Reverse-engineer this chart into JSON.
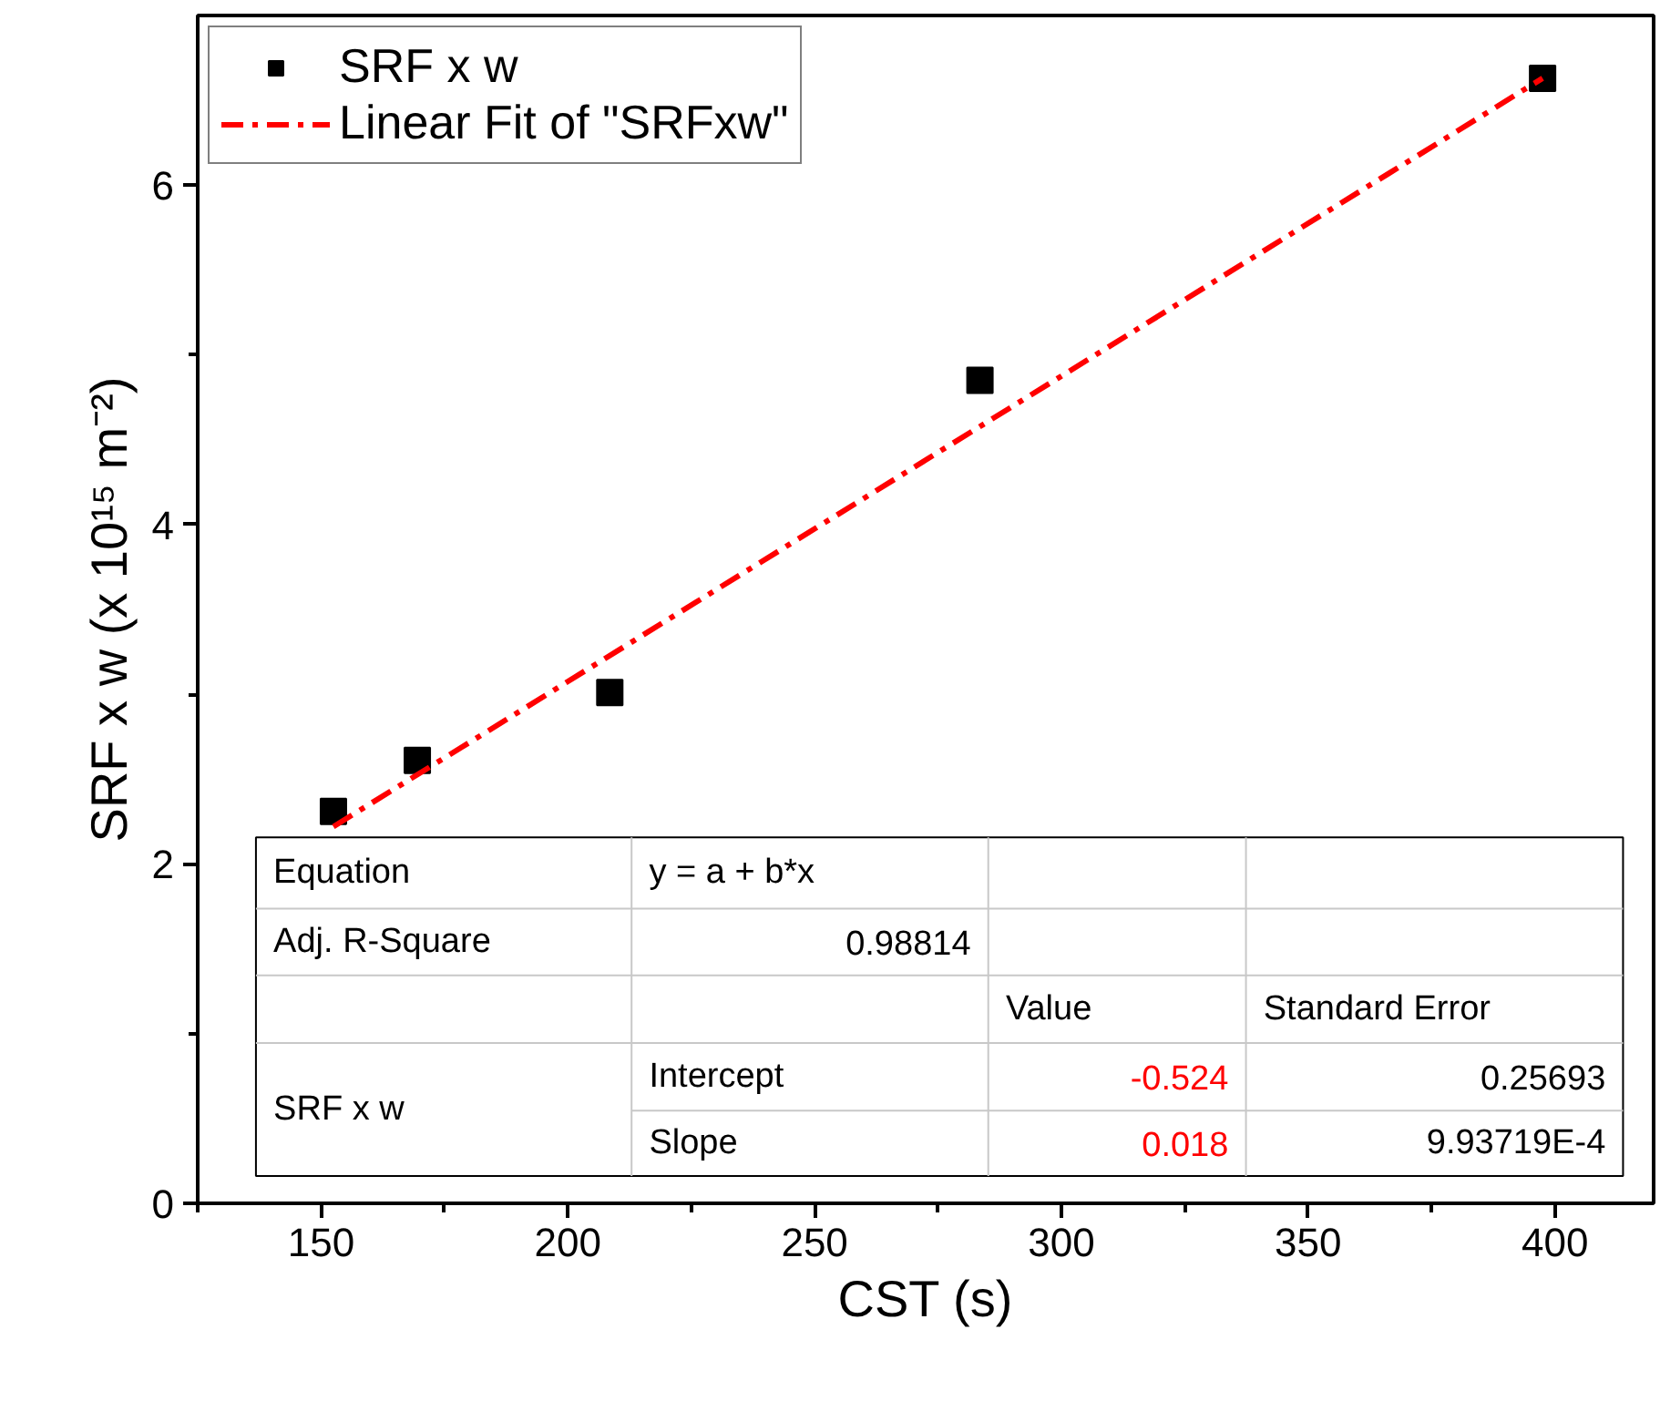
{
  "chart_data": {
    "type": "scatter",
    "xlabel": "CST (s)",
    "ylabel": "SRF x w (x 10¹⁵ m⁻²)",
    "x": [
      152.5,
      169.5,
      208.5,
      283.5,
      397.5
    ],
    "series": [
      {
        "name": "SRF x w",
        "color": "#000000",
        "marker": "square",
        "values": [
          2.31,
          2.61,
          3.01,
          4.85,
          6.63
        ]
      },
      {
        "name": "Linear Fit of \"SRFxw\"",
        "type": "line",
        "color": "#ff0000",
        "line_style": "dashed",
        "x": [
          152.5,
          397.5
        ],
        "values": [
          2.22,
          6.63
        ]
      }
    ],
    "xlim": [
      125,
      420
    ],
    "ylim": [
      0,
      7
    ],
    "xticks": [
      {
        "value": 125,
        "label": null
      },
      150,
      {
        "value": 175,
        "label": null
      },
      200,
      {
        "value": 225,
        "label": null
      },
      250,
      {
        "value": 275,
        "label": null
      },
      300,
      {
        "value": 325,
        "label": null
      },
      350,
      {
        "value": 375,
        "label": null
      },
      400
    ],
    "yticks": [
      0,
      {
        "value": 1,
        "label": null
      },
      2,
      {
        "value": 3,
        "label": null
      },
      4,
      {
        "value": 5,
        "label": null
      },
      6
    ],
    "grid": false,
    "legend": "top left",
    "annotations": [
      "Equation",
      "y = a + b*x",
      "Adj. R-Square",
      "0.98814",
      "Value",
      "Standard Error",
      "SRF x w",
      "Intercept",
      "-0.524",
      "0.25693",
      "Slope",
      "0.018",
      "9.93719E-4"
    ]
  }
}
